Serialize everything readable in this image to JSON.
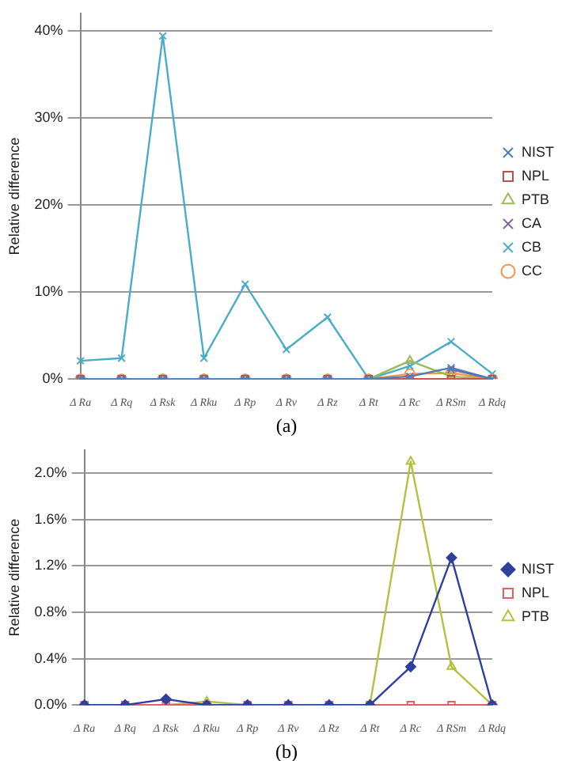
{
  "chart_data": [
    {
      "type": "line",
      "ylabel": "Relative difference",
      "categories": [
        "Δ Ra",
        "Δ Rq",
        "Δ Rsk",
        "Δ Rku",
        "Δ Rp",
        "Δ Rv",
        "Δ Rz",
        "Δ Rt",
        "Δ Rc",
        "Δ RSm",
        "Δ Rdq"
      ],
      "series": [
        {
          "name": "NIST",
          "color": "#4a7ebb",
          "marker": "cross",
          "values": [
            0,
            0,
            0,
            0,
            0,
            0,
            0,
            0,
            0.3,
            1.3,
            0
          ]
        },
        {
          "name": "NPL",
          "color": "#c0504d",
          "marker": "square",
          "values": [
            0,
            0,
            0,
            0,
            0,
            0,
            0,
            0,
            0,
            0,
            0
          ]
        },
        {
          "name": "PTB",
          "color": "#9bbb59",
          "marker": "triangle",
          "values": [
            null,
            null,
            0,
            0,
            0,
            0,
            0,
            0,
            2.1,
            0.3,
            0
          ]
        },
        {
          "name": "CA",
          "color": "#8064a2",
          "marker": "cross",
          "values": [
            0,
            0,
            0,
            0,
            0,
            0,
            0,
            0,
            null,
            1.1,
            0
          ]
        },
        {
          "name": "CB",
          "color": "#4bacc6",
          "marker": "cross",
          "values": [
            2.1,
            2.4,
            39.4,
            2.4,
            10.9,
            3.4,
            7.1,
            0,
            1.5,
            4.3,
            0.6
          ]
        },
        {
          "name": "CC",
          "color": "#f79646",
          "marker": "circle",
          "values": [
            0,
            0,
            0,
            0,
            0,
            0,
            0,
            0,
            0.6,
            0.7,
            0
          ]
        }
      ],
      "ylim": [
        0,
        42
      ],
      "yticks": [
        {
          "value": 0,
          "label": "0%"
        },
        {
          "value": 10,
          "label": "10%"
        },
        {
          "value": 20,
          "label": "20%"
        },
        {
          "value": 30,
          "label": "30%"
        },
        {
          "value": 40,
          "label": "40%"
        }
      ],
      "grid": "y",
      "legend": "right",
      "annotations": [
        "(a)"
      ]
    },
    {
      "type": "line",
      "ylabel": "Relative difference",
      "categories": [
        "Δ Ra",
        "Δ Rq",
        "Δ Rsk",
        "Δ Rku",
        "Δ Rp",
        "Δ Rv",
        "Δ Rz",
        "Δ Rt",
        "Δ Rc",
        "Δ RSm",
        "Δ Rdq"
      ],
      "series": [
        {
          "name": "NIST",
          "color": "#2e3f9e",
          "marker": "diamond",
          "values": [
            0,
            0,
            0.05,
            0,
            0,
            0,
            0,
            0,
            0.33,
            1.27,
            0
          ]
        },
        {
          "name": "NPL",
          "color": "#e06060",
          "marker": "square",
          "values": [
            0,
            0,
            0,
            0,
            0,
            0,
            0,
            0,
            0,
            0,
            0
          ]
        },
        {
          "name": "PTB",
          "color": "#b5c040",
          "marker": "triangle",
          "values": [
            0,
            0,
            0,
            0.03,
            0,
            0,
            0,
            0,
            2.1,
            0.33,
            0
          ]
        }
      ],
      "ylim": [
        0,
        2.2
      ],
      "yticks": [
        {
          "value": 0,
          "label": "0.0%"
        },
        {
          "value": 0.4,
          "label": "0.4%"
        },
        {
          "value": 0.8,
          "label": "0.8%"
        },
        {
          "value": 1.2,
          "label": "1.2%"
        },
        {
          "value": 1.6,
          "label": "1.6%"
        },
        {
          "value": 2.0,
          "label": "2.0%"
        }
      ],
      "grid": "y",
      "legend": "right",
      "annotations": [
        "(b)"
      ]
    }
  ]
}
